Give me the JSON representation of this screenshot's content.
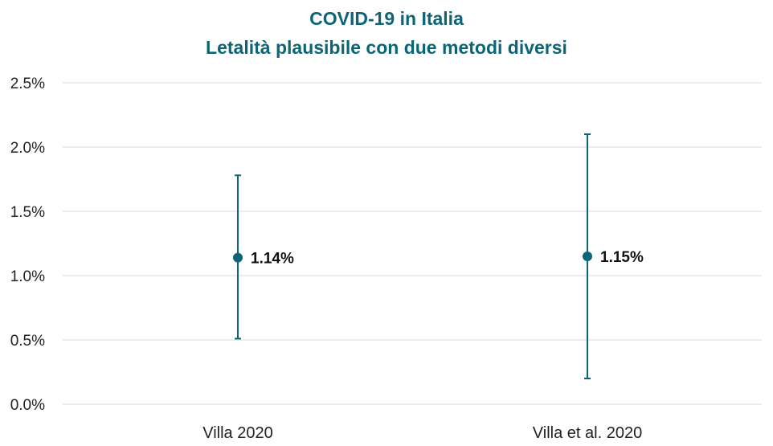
{
  "chart_data": {
    "type": "scatter",
    "title": "COVID-19 in Italia",
    "subtitle": "Letalità plausibile con due metodi diversi",
    "xlabel": "",
    "ylabel": "",
    "categories": [
      "Villa 2020",
      "Villa et al. 2020"
    ],
    "y_ticks": [
      "0.0%",
      "0.5%",
      "1.0%",
      "1.5%",
      "2.0%",
      "2.5%"
    ],
    "ylim": [
      0,
      2.5
    ],
    "grid": true,
    "points": [
      {
        "category": "Villa 2020",
        "value": 1.14,
        "low": 0.51,
        "high": 1.78,
        "label": "1.14%"
      },
      {
        "category": "Villa et al. 2020",
        "value": 1.15,
        "low": 0.2,
        "high": 2.1,
        "label": "1.15%"
      }
    ],
    "colors": {
      "title": "#0b6577",
      "marker": "#0b6577",
      "grid": "#d9d9d9"
    }
  }
}
